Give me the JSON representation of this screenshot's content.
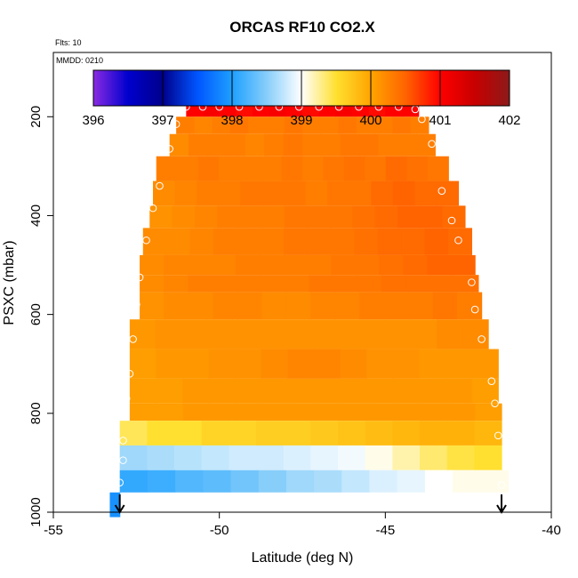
{
  "chart_data": {
    "type": "heatmap",
    "title": "ORCAS RF10 CO2.X",
    "note_flts": "Flts: 10",
    "note_mmdd": "MMDD: 0210",
    "xlabel": "Latitude (deg N)",
    "ylabel": "PSXC (mbar)",
    "xlim": [
      -55,
      -40
    ],
    "ylim": [
      1000,
      70
    ],
    "x_ticks": [
      -55,
      -50,
      -45,
      -40
    ],
    "x_tick_labels": [
      "-55",
      "-50",
      "-45",
      "-40"
    ],
    "y_ticks": [
      200,
      400,
      600,
      800,
      1000
    ],
    "y_tick_labels": [
      "200",
      "400",
      "600",
      "800",
      "1000"
    ],
    "colorbar": {
      "min": 396,
      "max": 402,
      "ticks": [
        396,
        397,
        398,
        399,
        400,
        401,
        402
      ],
      "tick_labels": [
        "396",
        "397",
        "398",
        "399",
        "400",
        "401",
        "402"
      ],
      "stops": [
        {
          "v": 396.0,
          "c": "#8a2be2"
        },
        {
          "v": 396.5,
          "c": "#0000cd"
        },
        {
          "v": 397.0,
          "c": "#00008b"
        },
        {
          "v": 397.5,
          "c": "#0055ff"
        },
        {
          "v": 398.0,
          "c": "#1ea0ff"
        },
        {
          "v": 398.5,
          "c": "#87cefa"
        },
        {
          "v": 399.0,
          "c": "#ffffff"
        },
        {
          "v": 399.5,
          "c": "#ffe030"
        },
        {
          "v": 400.0,
          "c": "#ffa500"
        },
        {
          "v": 400.5,
          "c": "#ff6400"
        },
        {
          "v": 401.0,
          "c": "#ff0000"
        },
        {
          "v": 401.5,
          "c": "#c80000"
        },
        {
          "v": 402.0,
          "c": "#8b1a1a"
        }
      ]
    },
    "bands": [
      {
        "p_top": 170,
        "p_bot": 200,
        "lat_min": -51.0,
        "lat_max": -44.0,
        "values": [
          401.0,
          401.05,
          401.0,
          400.95,
          401.0,
          401.05,
          401.0,
          400.95,
          401.0,
          401.05,
          401.0,
          400.95,
          401.0,
          401.0
        ]
      },
      {
        "p_top": 200,
        "p_bot": 235,
        "lat_min": -51.3,
        "lat_max": -43.7,
        "values": [
          400.3,
          400.25,
          400.3,
          400.35,
          400.3,
          400.3,
          400.35,
          400.3,
          400.3,
          400.35,
          400.3,
          400.3,
          400.35,
          400.3
        ]
      },
      {
        "p_top": 235,
        "p_bot": 280,
        "lat_min": -51.5,
        "lat_max": -43.5,
        "values": [
          400.2,
          400.3,
          400.3,
          400.3,
          400.25,
          400.3,
          400.35,
          400.3,
          400.3,
          400.35,
          400.35,
          400.3,
          400.3,
          400.3
        ]
      },
      {
        "p_top": 280,
        "p_bot": 330,
        "lat_min": -51.9,
        "lat_max": -43.1,
        "values": [
          400.3,
          400.3,
          400.35,
          400.3,
          400.3,
          400.3,
          400.35,
          400.3,
          400.35,
          400.4,
          400.35,
          400.45,
          400.4,
          400.35
        ]
      },
      {
        "p_top": 330,
        "p_bot": 380,
        "lat_min": -52.0,
        "lat_max": -42.8,
        "values": [
          400.2,
          400.25,
          400.3,
          400.3,
          400.35,
          400.35,
          400.35,
          400.3,
          400.35,
          400.35,
          400.45,
          400.5,
          400.45,
          400.45
        ]
      },
      {
        "p_top": 380,
        "p_bot": 425,
        "lat_min": -52.1,
        "lat_max": -42.6,
        "values": [
          400.15,
          400.2,
          400.25,
          400.3,
          400.3,
          400.3,
          400.35,
          400.35,
          400.35,
          400.4,
          400.45,
          400.5,
          400.5,
          400.45
        ]
      },
      {
        "p_top": 425,
        "p_bot": 480,
        "lat_min": -52.3,
        "lat_max": -42.4,
        "values": [
          400.2,
          400.2,
          400.25,
          400.3,
          400.3,
          400.3,
          400.35,
          400.35,
          400.35,
          400.4,
          400.45,
          400.45,
          400.5,
          400.45
        ]
      },
      {
        "p_top": 480,
        "p_bot": 520,
        "lat_min": -52.4,
        "lat_max": -42.3,
        "values": [
          400.2,
          400.25,
          400.25,
          400.25,
          400.3,
          400.3,
          400.3,
          400.3,
          400.35,
          400.35,
          400.4,
          400.45,
          400.5,
          400.5
        ]
      },
      {
        "p_top": 520,
        "p_bot": 555,
        "lat_min": -52.4,
        "lat_max": -42.2,
        "values": [
          400.2,
          400.25,
          400.3,
          400.3,
          400.3,
          400.3,
          400.3,
          400.35,
          400.35,
          400.35,
          400.4,
          400.4,
          400.4,
          400.4
        ]
      },
      {
        "p_top": 555,
        "p_bot": 610,
        "lat_min": -52.4,
        "lat_max": -42.1,
        "values": [
          400.15,
          400.2,
          400.2,
          400.25,
          400.25,
          400.2,
          400.2,
          400.25,
          400.25,
          400.3,
          400.3,
          400.3,
          400.35,
          400.3
        ]
      },
      {
        "p_top": 610,
        "p_bot": 670,
        "lat_min": -52.7,
        "lat_max": -41.9,
        "values": [
          400.1,
          400.15,
          400.15,
          400.15,
          400.15,
          400.15,
          400.15,
          400.15,
          400.15,
          400.15,
          400.15,
          400.15,
          400.2,
          400.2
        ]
      },
      {
        "p_top": 670,
        "p_bot": 730,
        "lat_min": -52.7,
        "lat_max": -41.6,
        "values": [
          400.05,
          400.1,
          400.1,
          400.15,
          400.15,
          400.2,
          400.25,
          400.25,
          400.2,
          400.15,
          400.15,
          400.1,
          400.1,
          400.1
        ]
      },
      {
        "p_top": 730,
        "p_bot": 780,
        "lat_min": -52.7,
        "lat_max": -41.6,
        "values": [
          400.05,
          400.05,
          400.1,
          400.1,
          400.1,
          400.1,
          400.1,
          400.1,
          400.1,
          400.1,
          400.1,
          400.1,
          400.1,
          400.05
        ]
      },
      {
        "p_top": 780,
        "p_bot": 815,
        "lat_min": -52.7,
        "lat_max": -41.5,
        "values": [
          400.05,
          400.05,
          400.1,
          400.1,
          400.1,
          400.1,
          400.1,
          400.1,
          400.1,
          400.1,
          400.1,
          400.1,
          400.1,
          400.05
        ]
      },
      {
        "p_top": 815,
        "p_bot": 865,
        "lat_min": -53.0,
        "lat_max": -41.5,
        "values": [
          399.4,
          399.5,
          399.5,
          399.6,
          399.6,
          399.65,
          399.65,
          399.7,
          399.75,
          399.8,
          399.85,
          399.9,
          399.9,
          399.85
        ]
      },
      {
        "p_top": 865,
        "p_bot": 915,
        "lat_min": -53.0,
        "lat_max": -41.5,
        "values": [
          398.6,
          398.65,
          398.7,
          398.75,
          398.8,
          398.8,
          398.85,
          398.9,
          398.95,
          399.05,
          399.2,
          399.35,
          399.45,
          399.5
        ]
      },
      {
        "p_top": 915,
        "p_bot": 960,
        "lat_min": -53.0,
        "lat_max": -41.3,
        "values": [
          398.1,
          398.15,
          398.25,
          398.3,
          398.4,
          398.5,
          398.6,
          398.65,
          398.75,
          398.85,
          398.9,
          399.0,
          399.05,
          399.05
        ]
      },
      {
        "p_top": 960,
        "p_bot": 1010,
        "lat_min": -53.3,
        "lat_max": -53.0,
        "values": [
          397.9
        ]
      }
    ],
    "points": [
      {
        "lat": -51.0,
        "p": 180
      },
      {
        "lat": -50.5,
        "p": 180
      },
      {
        "lat": -50.0,
        "p": 180
      },
      {
        "lat": -49.4,
        "p": 180
      },
      {
        "lat": -48.8,
        "p": 180
      },
      {
        "lat": -48.2,
        "p": 180
      },
      {
        "lat": -47.6,
        "p": 180
      },
      {
        "lat": -47.0,
        "p": 180
      },
      {
        "lat": -46.4,
        "p": 180
      },
      {
        "lat": -45.8,
        "p": 180
      },
      {
        "lat": -45.2,
        "p": 180
      },
      {
        "lat": -44.6,
        "p": 180
      },
      {
        "lat": -44.1,
        "p": 185
      },
      {
        "lat": -43.9,
        "p": 205
      },
      {
        "lat": -51.3,
        "p": 215
      },
      {
        "lat": -51.5,
        "p": 265
      },
      {
        "lat": -43.6,
        "p": 255
      },
      {
        "lat": -51.8,
        "p": 340
      },
      {
        "lat": -43.3,
        "p": 350
      },
      {
        "lat": -52.0,
        "p": 385
      },
      {
        "lat": -52.2,
        "p": 450
      },
      {
        "lat": -43.0,
        "p": 410
      },
      {
        "lat": -42.8,
        "p": 450
      },
      {
        "lat": -52.4,
        "p": 525
      },
      {
        "lat": -42.4,
        "p": 535
      },
      {
        "lat": -52.5,
        "p": 580
      },
      {
        "lat": -42.3,
        "p": 590
      },
      {
        "lat": -52.6,
        "p": 650
      },
      {
        "lat": -42.1,
        "p": 650
      },
      {
        "lat": -52.7,
        "p": 720
      },
      {
        "lat": -41.8,
        "p": 735
      },
      {
        "lat": -52.8,
        "p": 770
      },
      {
        "lat": -41.7,
        "p": 780
      },
      {
        "lat": -52.9,
        "p": 855
      },
      {
        "lat": -41.6,
        "p": 845
      },
      {
        "lat": -52.9,
        "p": 895
      },
      {
        "lat": -53.0,
        "p": 940
      },
      {
        "lat": -41.5,
        "p": 945
      }
    ],
    "arrows": [
      {
        "lat": -53.0
      },
      {
        "lat": -41.5
      }
    ],
    "colors": {
      "frame": "#000000",
      "point": "#ffffff",
      "background": "#ffffff"
    }
  }
}
